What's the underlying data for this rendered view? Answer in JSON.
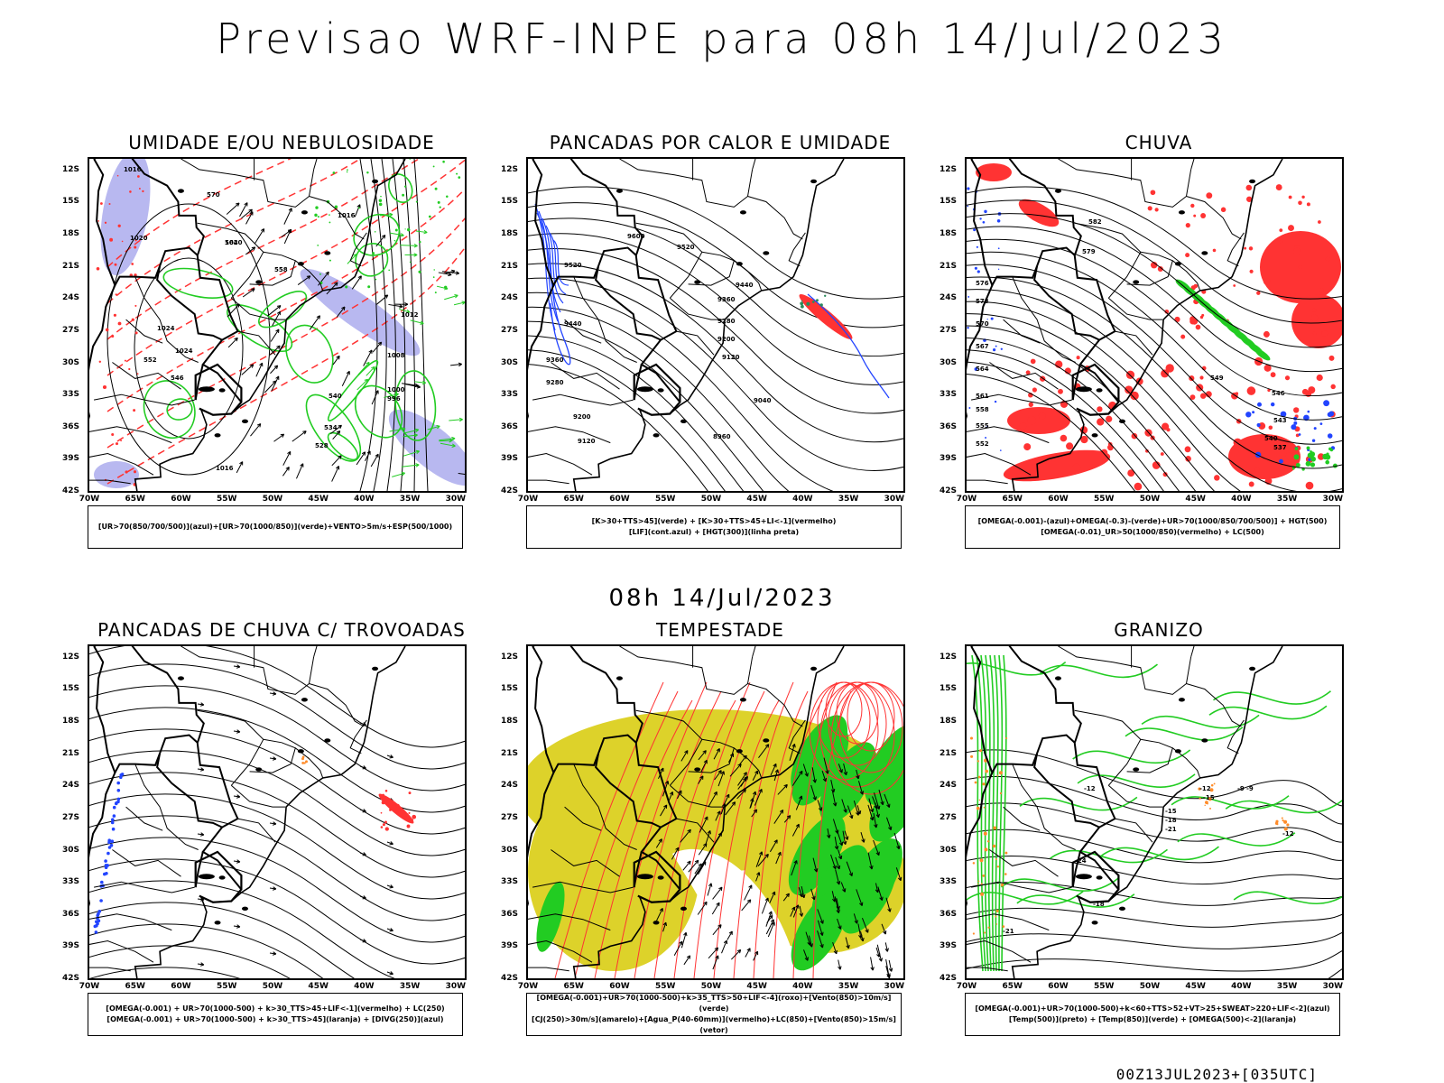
{
  "main_title": "Previsao WRF-INPE  para 08h 14/Jul/2023",
  "mid_date": "08h 14/Jul/2023",
  "footer": "00Z13JUL2023+[035UTC]",
  "axes": {
    "lat_labels": [
      "12S",
      "15S",
      "18S",
      "21S",
      "24S",
      "27S",
      "30S",
      "33S",
      "36S",
      "39S",
      "42S"
    ],
    "lon_labels": [
      "70W",
      "65W",
      "60W",
      "55W",
      "50W",
      "45W",
      "40W",
      "35W",
      "30W"
    ]
  },
  "colors": {
    "green": "#22cc22",
    "red": "#ff3333",
    "blue": "#2244ff",
    "lavender": "#b8b8f0",
    "yellow": "#ddd22a",
    "orange": "#ff8c2a",
    "black": "#000000"
  },
  "panels": [
    {
      "title": "UMIDADE E/OU NEBULOSIDADE",
      "legend": [
        "[UR>70(850/700/500)](azul)+[UR>70(1000/850)](verde)+VENTO>5m/s+ESP(500/1000)"
      ],
      "contour_labels": [
        "1016",
        "1020",
        "1024",
        "1024",
        "1020",
        "1016",
        "1016",
        "1012",
        "1008",
        "1000",
        "996",
        "570",
        "564",
        "558",
        "552",
        "546",
        "540",
        "534",
        "528"
      ]
    },
    {
      "title": "PANCADAS POR CALOR E UMIDADE",
      "legend": [
        "[K>30+TTS>45](verde) + [K>30+TTS>45+LI<-1](vermelho)",
        "[LIF](cont.azul) + [HGT(300)](linha preta)"
      ],
      "contour_labels": [
        "9600",
        "9520",
        "9440",
        "9360",
        "9280",
        "9200",
        "9120",
        "9040",
        "8960",
        "9520",
        "9440",
        "9360",
        "9280",
        "9200",
        "9120"
      ]
    },
    {
      "title": "CHUVA",
      "legend": [
        "[OMEGA(-0.001)-(azul)+OMEGA(-0.3)-(verde)+UR>70(1000/850/700/500)] + HGT(500)",
        "[OMEGA(-0.01)_UR>50(1000/850)(vermelho) + LC(500)"
      ],
      "contour_labels": [
        "582",
        "579",
        "576",
        "573",
        "570",
        "567",
        "564",
        "561",
        "558",
        "555",
        "552",
        "549",
        "546",
        "543",
        "540",
        "537"
      ]
    },
    {
      "title": "PANCADAS DE CHUVA C/ TROVOADAS",
      "legend": [
        "[OMEGA(-0.001) + UR>70(1000-500) + k>30_TTS>45+LIF<-1](vermelho) + LC(250)",
        "[OMEGA(-0.001) + UR>70(1000-500) + k>30_TTS>45](laranja) + [DIVG(250)](azul)"
      ],
      "contour_labels": []
    },
    {
      "title": "TEMPESTADE",
      "legend": [
        "[OMEGA(-0.001)+UR>70(1000-500)+k>35_TTS>50+LIF<-4](roxo)+[Vento(850)>10m/s](verde)",
        "[CJ(250)>30m/s](amarelo)+[Agua_P(40-60mm)](vermelho)+LC(850)+[Vento(850)>15m/s](vetor)"
      ],
      "contour_labels": []
    },
    {
      "title": "GRANIZO",
      "legend": [
        "[OMEGA(-0.001)+UR>70(1000-500)+k<60+TTS>52+VT>25+SWEAT>220+LIF<-2](azul)",
        "[Temp(500)](preto) + [Temp(850)](verde) + [OMEGA(500)<-2](laranja)"
      ],
      "contour_labels": [
        "-9",
        "-12",
        "-15",
        "-18",
        "-21",
        "-24",
        "-12",
        "-15",
        "-18",
        "-21",
        "-9",
        "-12"
      ]
    }
  ]
}
